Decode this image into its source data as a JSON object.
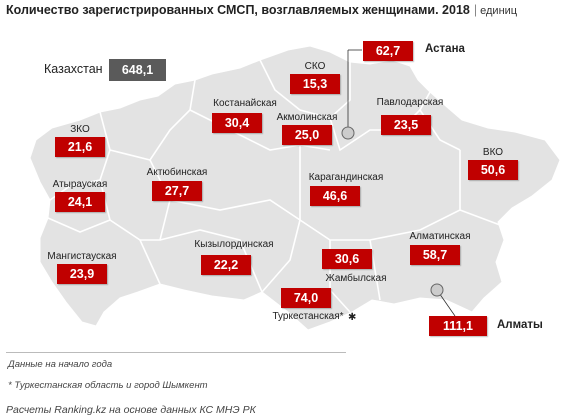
{
  "title": "Количество зарегистрированных СМСП, возглавляемых женщинами. 2018",
  "unit": "единиц",
  "kazakhstan": {
    "label": "Казахстан",
    "value": "648,1"
  },
  "regions": [
    {
      "name": "ЗКО",
      "value": "21,6"
    },
    {
      "name": "Атырауская",
      "value": "24,1"
    },
    {
      "name": "Мангистауская",
      "value": "23,9"
    },
    {
      "name": "Актюбинская",
      "value": "27,7"
    },
    {
      "name": "Костанайская",
      "value": "30,4"
    },
    {
      "name": "СКО",
      "value": "15,3"
    },
    {
      "name": "Акмолинская",
      "value": "25,0"
    },
    {
      "name": "Павлодарская",
      "value": "23,5"
    },
    {
      "name": "ВКО",
      "value": "50,6"
    },
    {
      "name": "Карагандинская",
      "value": "46,6"
    },
    {
      "name": "Кызылординская",
      "value": "22,2"
    },
    {
      "name": "Жамбылская",
      "value": "30,6"
    },
    {
      "name": "Алматинская",
      "value": "58,7"
    },
    {
      "name": "Туркестанская*",
      "value": "74,0"
    }
  ],
  "cities": [
    {
      "name": "Астана",
      "value": "62,7"
    },
    {
      "name": "Алматы",
      "value": "111,1"
    }
  ],
  "notes": [
    "Данные на начало года",
    "* Туркестанская область и город Шымкент"
  ],
  "source": "Расчеты Ranking.kz на основе данных КС МНЭ РК",
  "colors": {
    "map_fill": "#e3e3e3",
    "value_box": "#c00000",
    "total_box": "#5a5a5a"
  }
}
